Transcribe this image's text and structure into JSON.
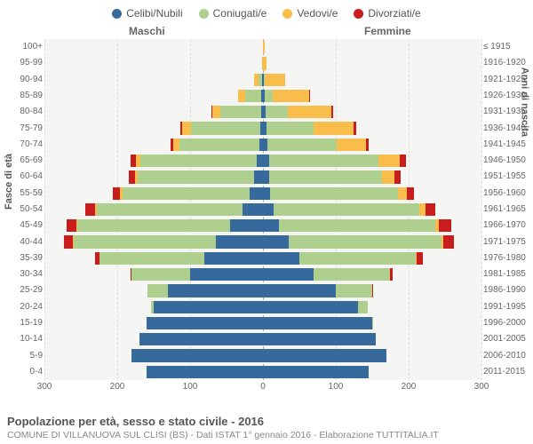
{
  "legend": [
    {
      "label": "Celibi/Nubili",
      "color": "#366a9c"
    },
    {
      "label": "Coniugati/e",
      "color": "#aecf8e"
    },
    {
      "label": "Vedovi/e",
      "color": "#f9bd4b"
    },
    {
      "label": "Divorziati/e",
      "color": "#c91d1d"
    }
  ],
  "columns": {
    "male": "Maschi",
    "female": "Femmine"
  },
  "axis": {
    "left_title": "Fasce di età",
    "right_title": "Anni di nascita",
    "x_max": 300,
    "x_ticks": [
      0,
      100,
      200,
      300
    ]
  },
  "colors": {
    "background": "#f5f5f3",
    "grid": "#dddddd",
    "center": "#aaaaaa",
    "celibi": "#366a9c",
    "coniugati": "#aecf8e",
    "vedovi": "#f9bd4b",
    "divorziati": "#c91d1d"
  },
  "rows": [
    {
      "age": "100+",
      "birth": "≤ 1915",
      "m": {
        "c": 0,
        "co": 0,
        "v": 0,
        "d": 0
      },
      "f": {
        "c": 0,
        "co": 0,
        "v": 2,
        "d": 0
      }
    },
    {
      "age": "95-99",
      "birth": "1916-1920",
      "m": {
        "c": 0,
        "co": 0,
        "v": 1,
        "d": 0
      },
      "f": {
        "c": 0,
        "co": 0,
        "v": 5,
        "d": 0
      }
    },
    {
      "age": "90-94",
      "birth": "1921-1925",
      "m": {
        "c": 1,
        "co": 5,
        "v": 6,
        "d": 0
      },
      "f": {
        "c": 1,
        "co": 2,
        "v": 28,
        "d": 0
      }
    },
    {
      "age": "85-89",
      "birth": "1926-1930",
      "m": {
        "c": 2,
        "co": 22,
        "v": 10,
        "d": 0
      },
      "f": {
        "c": 3,
        "co": 10,
        "v": 50,
        "d": 1
      }
    },
    {
      "age": "80-84",
      "birth": "1931-1935",
      "m": {
        "c": 3,
        "co": 55,
        "v": 12,
        "d": 1
      },
      "f": {
        "c": 4,
        "co": 30,
        "v": 60,
        "d": 2
      }
    },
    {
      "age": "75-79",
      "birth": "1936-1940",
      "m": {
        "c": 4,
        "co": 95,
        "v": 12,
        "d": 3
      },
      "f": {
        "c": 5,
        "co": 65,
        "v": 55,
        "d": 3
      }
    },
    {
      "age": "70-74",
      "birth": "1941-1945",
      "m": {
        "c": 5,
        "co": 110,
        "v": 8,
        "d": 4
      },
      "f": {
        "c": 6,
        "co": 95,
        "v": 40,
        "d": 4
      }
    },
    {
      "age": "65-69",
      "birth": "1946-1950",
      "m": {
        "c": 8,
        "co": 160,
        "v": 6,
        "d": 8
      },
      "f": {
        "c": 8,
        "co": 150,
        "v": 30,
        "d": 8
      }
    },
    {
      "age": "60-64",
      "birth": "1951-1955",
      "m": {
        "c": 12,
        "co": 160,
        "v": 4,
        "d": 8
      },
      "f": {
        "c": 8,
        "co": 155,
        "v": 18,
        "d": 8
      }
    },
    {
      "age": "55-59",
      "birth": "1956-1960",
      "m": {
        "c": 18,
        "co": 175,
        "v": 3,
        "d": 10
      },
      "f": {
        "c": 10,
        "co": 175,
        "v": 12,
        "d": 10
      }
    },
    {
      "age": "50-54",
      "birth": "1961-1965",
      "m": {
        "c": 28,
        "co": 200,
        "v": 2,
        "d": 14
      },
      "f": {
        "c": 15,
        "co": 200,
        "v": 8,
        "d": 14
      }
    },
    {
      "age": "45-49",
      "birth": "1966-1970",
      "m": {
        "c": 45,
        "co": 210,
        "v": 1,
        "d": 14
      },
      "f": {
        "c": 22,
        "co": 215,
        "v": 5,
        "d": 16
      }
    },
    {
      "age": "40-44",
      "birth": "1971-1975",
      "m": {
        "c": 65,
        "co": 195,
        "v": 1,
        "d": 12
      },
      "f": {
        "c": 35,
        "co": 210,
        "v": 3,
        "d": 14
      }
    },
    {
      "age": "35-39",
      "birth": "1976-1980",
      "m": {
        "c": 80,
        "co": 145,
        "v": 0,
        "d": 6
      },
      "f": {
        "c": 50,
        "co": 160,
        "v": 1,
        "d": 8
      }
    },
    {
      "age": "30-34",
      "birth": "1981-1985",
      "m": {
        "c": 100,
        "co": 80,
        "v": 0,
        "d": 2
      },
      "f": {
        "c": 70,
        "co": 105,
        "v": 0,
        "d": 3
      }
    },
    {
      "age": "25-29",
      "birth": "1986-1990",
      "m": {
        "c": 130,
        "co": 28,
        "v": 0,
        "d": 0
      },
      "f": {
        "c": 100,
        "co": 50,
        "v": 0,
        "d": 1
      }
    },
    {
      "age": "20-24",
      "birth": "1991-1995",
      "m": {
        "c": 150,
        "co": 4,
        "v": 0,
        "d": 0
      },
      "f": {
        "c": 130,
        "co": 14,
        "v": 0,
        "d": 0
      }
    },
    {
      "age": "15-19",
      "birth": "1996-2000",
      "m": {
        "c": 160,
        "co": 0,
        "v": 0,
        "d": 0
      },
      "f": {
        "c": 150,
        "co": 1,
        "v": 0,
        "d": 0
      }
    },
    {
      "age": "10-14",
      "birth": "2001-2005",
      "m": {
        "c": 170,
        "co": 0,
        "v": 0,
        "d": 0
      },
      "f": {
        "c": 155,
        "co": 0,
        "v": 0,
        "d": 0
      }
    },
    {
      "age": "5-9",
      "birth": "2006-2010",
      "m": {
        "c": 180,
        "co": 0,
        "v": 0,
        "d": 0
      },
      "f": {
        "c": 170,
        "co": 0,
        "v": 0,
        "d": 0
      }
    },
    {
      "age": "0-4",
      "birth": "2011-2015",
      "m": {
        "c": 160,
        "co": 0,
        "v": 0,
        "d": 0
      },
      "f": {
        "c": 145,
        "co": 0,
        "v": 0,
        "d": 0
      }
    }
  ],
  "footer": {
    "title": "Popolazione per età, sesso e stato civile - 2016",
    "subtitle": "COMUNE DI VILLANUOVA SUL CLISI (BS) - Dati ISTAT 1° gennaio 2016 - Elaborazione TUTTITALIA.IT"
  }
}
